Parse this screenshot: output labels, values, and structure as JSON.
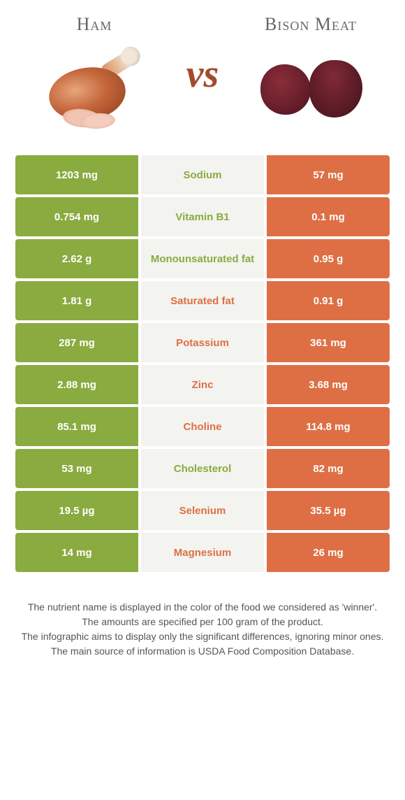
{
  "colors": {
    "left_bg": "#8aab3f",
    "right_bg": "#de6f45",
    "mid_bg": "#f3f4f0",
    "left_text": "#8aab3f",
    "right_text": "#de6f45",
    "value_text": "#ffffff",
    "body_text": "#555555"
  },
  "header": {
    "left_title": "Ham",
    "right_title": "Bison Meat",
    "vs": "vs"
  },
  "rows": [
    {
      "left": "1203 mg",
      "label": "Sodium",
      "right": "57 mg",
      "winner": "left"
    },
    {
      "left": "0.754 mg",
      "label": "Vitamin B1",
      "right": "0.1 mg",
      "winner": "left"
    },
    {
      "left": "2.62 g",
      "label": "Monounsaturated fat",
      "right": "0.95 g",
      "winner": "left"
    },
    {
      "left": "1.81 g",
      "label": "Saturated fat",
      "right": "0.91 g",
      "winner": "right"
    },
    {
      "left": "287 mg",
      "label": "Potassium",
      "right": "361 mg",
      "winner": "right"
    },
    {
      "left": "2.88 mg",
      "label": "Zinc",
      "right": "3.68 mg",
      "winner": "right"
    },
    {
      "left": "85.1 mg",
      "label": "Choline",
      "right": "114.8 mg",
      "winner": "right"
    },
    {
      "left": "53 mg",
      "label": "Cholesterol",
      "right": "82 mg",
      "winner": "left"
    },
    {
      "left": "19.5 µg",
      "label": "Selenium",
      "right": "35.5 µg",
      "winner": "right"
    },
    {
      "left": "14 mg",
      "label": "Magnesium",
      "right": "26 mg",
      "winner": "right"
    }
  ],
  "footer": {
    "line1": "The nutrient name is displayed in the color of the food we considered as 'winner'.",
    "line2": "The amounts are specified per 100 gram of the product.",
    "line3": "The infographic aims to display only the significant differences, ignoring minor ones.",
    "line4": "The main source of information is USDA Food Composition Database."
  }
}
